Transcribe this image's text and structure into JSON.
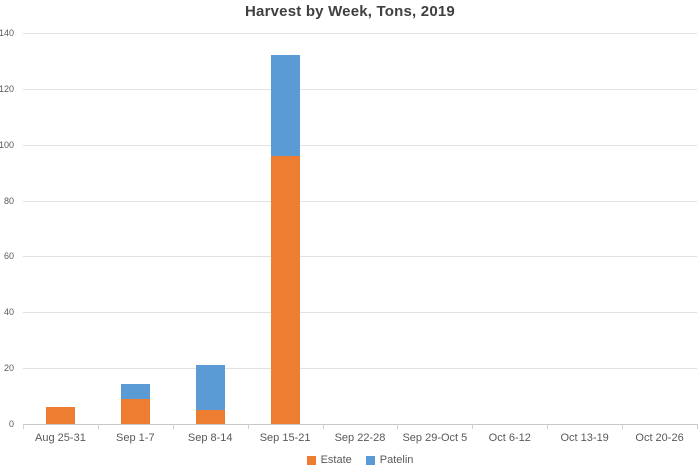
{
  "chart_data": {
    "type": "bar",
    "stacked": true,
    "title": "Harvest by Week, Tons, 2019",
    "categories": [
      "Aug 25-31",
      "Sep 1-7",
      "Sep 8-14",
      "Sep 15-21",
      "Sep 22-28",
      "Sep 29-Oct 5",
      "Oct 6-12",
      "Oct 13-19",
      "Oct 20-26"
    ],
    "series": [
      {
        "name": "Estate",
        "color": "#ED7D31",
        "values": [
          6,
          9,
          5,
          96,
          0,
          0,
          0,
          0,
          0
        ]
      },
      {
        "name": "Patelin",
        "color": "#5B9BD5",
        "values": [
          0,
          5.5,
          16,
          36,
          0,
          0,
          0,
          0,
          0
        ]
      }
    ],
    "xlabel": "",
    "ylabel": "",
    "ylim": [
      0,
      140
    ],
    "ytick": 20,
    "grid": true,
    "legend_position": "bottom"
  },
  "colors": {
    "background": "#FFFFFF",
    "title_text": "#404040",
    "axis_label_text": "#595959",
    "gridline": "#E2E2E2",
    "axis_line": "#C8C8C8"
  }
}
